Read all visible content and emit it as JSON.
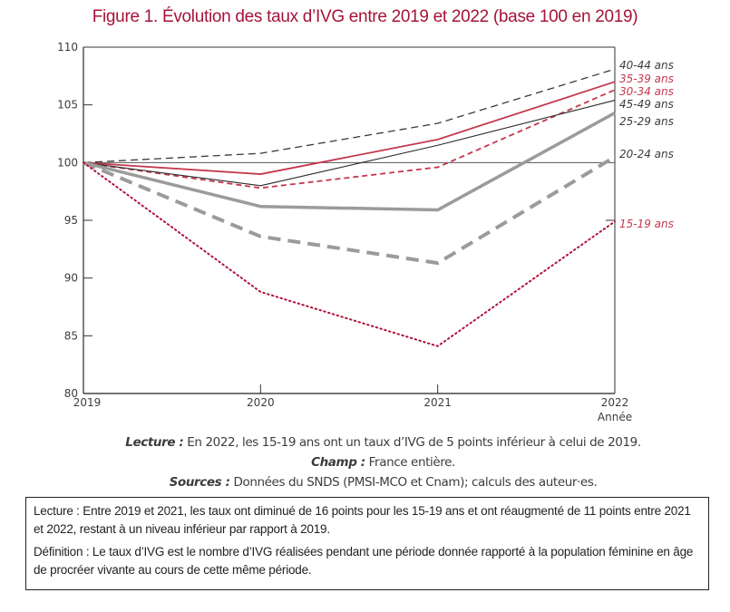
{
  "chart_data": {
    "type": "line",
    "title": "Figure 1. Évolution des taux d’IVG entre 2019 et 2022 (base 100 en 2019)",
    "xlabel": "Année",
    "ylabel": "",
    "x": [
      "2019",
      "2020",
      "2021",
      "2022"
    ],
    "ylim": [
      80,
      110
    ],
    "yticks": [
      80,
      85,
      90,
      95,
      100,
      105,
      110
    ],
    "reference_line": 100,
    "grid": false,
    "legend": "right-end-labels",
    "series": [
      {
        "name": "40-44  ans",
        "values": [
          100,
          100.8,
          103.4,
          108.1
        ],
        "color": "#3a3a3a",
        "style": "dashed-thin"
      },
      {
        "name": "35-39 ans",
        "values": [
          100,
          99.0,
          102.0,
          107.0
        ],
        "color": "#c4384e",
        "style": "solid-red"
      },
      {
        "name": "30-34 ans",
        "values": [
          100,
          97.8,
          99.6,
          106.3
        ],
        "color": "#c4384e",
        "style": "dashed-red"
      },
      {
        "name": "45-49 ans",
        "values": [
          100,
          98.0,
          101.5,
          105.4
        ],
        "color": "#2a2a2a",
        "style": "solid-thin"
      },
      {
        "name": "25-29 ans",
        "values": [
          100,
          96.2,
          95.9,
          104.3
        ],
        "color": "#9b9b9b",
        "style": "solid-thick"
      },
      {
        "name": "20-24 ans",
        "values": [
          100,
          93.6,
          91.3,
          100.5
        ],
        "color": "#9b9b9b",
        "style": "dashed-thick"
      },
      {
        "name": "15-19 ans",
        "values": [
          100,
          88.8,
          84.1,
          94.9
        ],
        "color": "#b0123a",
        "style": "dotted"
      }
    ]
  },
  "notes": {
    "lecture_label": "Lecture :",
    "lecture_text": " En 2022, les 15-19 ans ont un taux d’IVG de 5 points inférieur à celui de 2019.",
    "champ_label": "Champ :",
    "champ_text": " France entière.",
    "sources_label": "Sources :",
    "sources_text": " Données du SNDS (PMSI-MCO et Cnam); calculs des auteur·es."
  },
  "info_box": {
    "lecture": "Lecture : Entre 2019 et 2021, les taux ont diminué de 16 points pour les 15-19 ans et ont réaugmenté de 11 points entre 2021 et 2022, restant à un niveau inférieur par rapport à 2019.",
    "definition": "Définition : Le taux d’IVG est le nombre d’IVG réalisées pendant une période donnée rapporté à la population féminine en âge de procréer vivante au cours de cette même période."
  }
}
